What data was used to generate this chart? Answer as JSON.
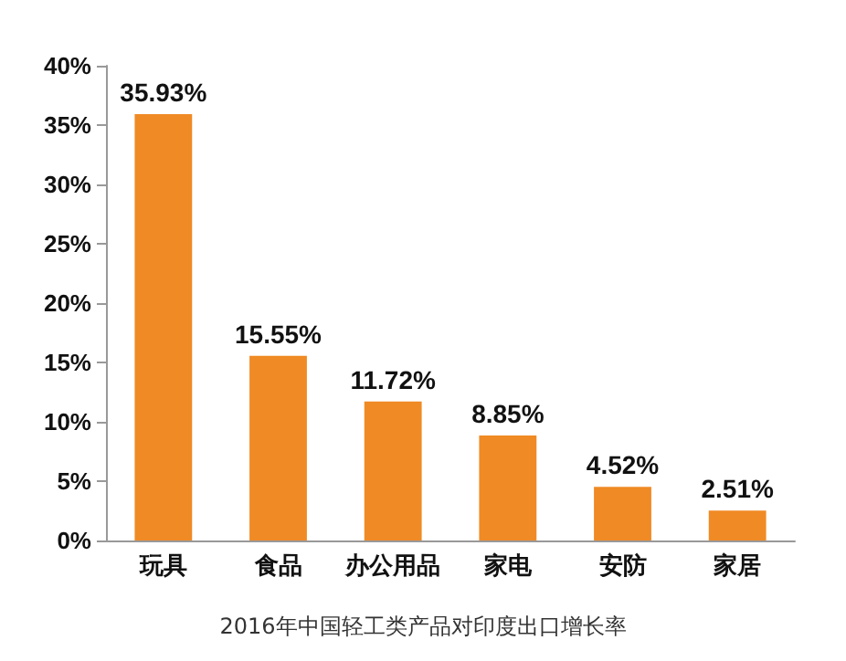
{
  "chart_data": {
    "type": "bar",
    "title": "2016年中国轻工类产品对印度出口增长率",
    "categories": [
      "玩具",
      "食品",
      "办公用品",
      "家电",
      "安防",
      "家居"
    ],
    "values": [
      35.93,
      15.55,
      11.72,
      8.85,
      4.52,
      2.51
    ],
    "value_labels": [
      "35.93%",
      "15.55%",
      "11.72%",
      "8.85%",
      "4.52%",
      "2.51%"
    ],
    "color": "#f08a24",
    "ylim": [
      0,
      40
    ],
    "yticks": [
      {
        "value": 0,
        "label": "0%"
      },
      {
        "value": 5,
        "label": "5%"
      },
      {
        "value": 10,
        "label": "10%"
      },
      {
        "value": 15,
        "label": "15%"
      },
      {
        "value": 20,
        "label": "20%"
      },
      {
        "value": 25,
        "label": "25%"
      },
      {
        "value": 30,
        "label": "30%"
      },
      {
        "value": 35,
        "label": "35%"
      },
      {
        "value": 40,
        "label": "40%"
      }
    ],
    "grid": false
  }
}
